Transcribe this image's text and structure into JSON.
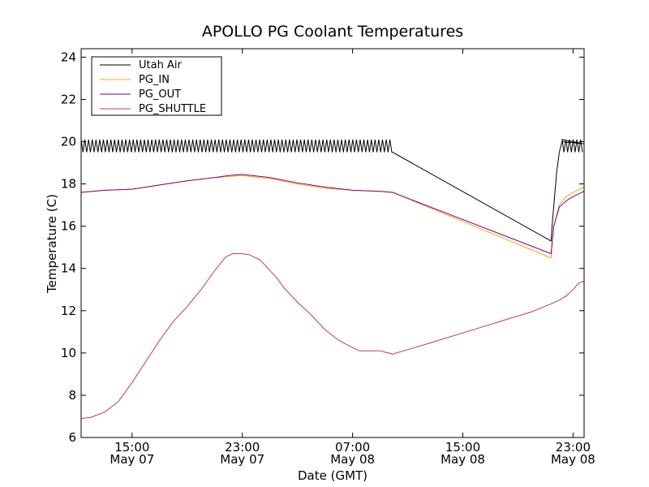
{
  "chart_data": {
    "type": "line",
    "title": "APOLLO PG Coolant Temperatures",
    "xlabel": "Date (GMT)",
    "ylabel": "Temperature (C)",
    "xlim": [
      11.3,
      47.8
    ],
    "ylim": [
      6,
      24.4
    ],
    "y_ticks": [
      {
        "value": 6,
        "label": "6"
      },
      {
        "value": 8,
        "label": "8"
      },
      {
        "value": 10,
        "label": "10"
      },
      {
        "value": 12,
        "label": "12"
      },
      {
        "value": 14,
        "label": "14"
      },
      {
        "value": 16,
        "label": "16"
      },
      {
        "value": 18,
        "label": "18"
      },
      {
        "value": 20,
        "label": "20"
      },
      {
        "value": 22,
        "label": "22"
      },
      {
        "value": 24,
        "label": "24"
      }
    ],
    "x_ticks": [
      {
        "value": 15,
        "time": "15:00",
        "date": "May 07"
      },
      {
        "value": 23,
        "time": "23:00",
        "date": "May 07"
      },
      {
        "value": 31,
        "time": "07:00",
        "date": "May 08"
      },
      {
        "value": 39,
        "time": "15:00",
        "date": "May 08"
      },
      {
        "value": 47,
        "time": "23:00",
        "date": "May 08"
      }
    ],
    "legend": {
      "position": "top-left"
    },
    "series": [
      {
        "name": "Utah Air",
        "color": "#000000",
        "oscillation": {
          "x_start": 11.3,
          "x_end": 33.9,
          "period": 0.27,
          "low": 19.5,
          "high": 20.1
        },
        "points": [
          [
            33.9,
            19.5
          ],
          [
            45.4,
            15.3
          ],
          [
            45.5,
            16.2
          ],
          [
            45.8,
            18.5
          ],
          [
            46.0,
            19.5
          ],
          [
            46.2,
            20.0
          ],
          [
            47.8,
            19.9
          ]
        ],
        "oscillation2": {
          "x_start": 46.2,
          "x_end": 47.8,
          "period": 0.27,
          "low": 19.5,
          "high": 20.1
        }
      },
      {
        "name": "PG_IN",
        "color": "#ffa500",
        "points": [
          [
            11.3,
            17.6
          ],
          [
            13.0,
            17.7
          ],
          [
            15.0,
            17.75
          ],
          [
            17.0,
            17.95
          ],
          [
            19.0,
            18.15
          ],
          [
            21.0,
            18.3
          ],
          [
            22.0,
            18.35
          ],
          [
            23.0,
            18.4
          ],
          [
            25.0,
            18.25
          ],
          [
            27.0,
            18.0
          ],
          [
            29.0,
            17.8
          ],
          [
            31.0,
            17.7
          ],
          [
            33.0,
            17.65
          ],
          [
            33.9,
            17.6
          ],
          [
            45.4,
            14.5
          ],
          [
            45.6,
            16.0
          ],
          [
            46.0,
            17.0
          ],
          [
            46.5,
            17.4
          ],
          [
            47.0,
            17.6
          ],
          [
            47.8,
            17.85
          ]
        ]
      },
      {
        "name": "PG_OUT",
        "color": "#800080",
        "points": [
          [
            11.3,
            17.6
          ],
          [
            13.0,
            17.7
          ],
          [
            15.0,
            17.75
          ],
          [
            17.0,
            17.95
          ],
          [
            19.0,
            18.15
          ],
          [
            21.0,
            18.3
          ],
          [
            22.0,
            18.4
          ],
          [
            23.0,
            18.45
          ],
          [
            25.0,
            18.3
          ],
          [
            27.0,
            18.05
          ],
          [
            29.0,
            17.85
          ],
          [
            31.0,
            17.7
          ],
          [
            33.0,
            17.65
          ],
          [
            33.9,
            17.6
          ],
          [
            45.4,
            14.7
          ],
          [
            45.6,
            16.0
          ],
          [
            46.0,
            16.9
          ],
          [
            46.5,
            17.2
          ],
          [
            47.0,
            17.4
          ],
          [
            47.8,
            17.65
          ]
        ]
      },
      {
        "name": "PG_SHUTTLE",
        "color": "#c04040",
        "points": [
          [
            11.3,
            6.9
          ],
          [
            12.0,
            6.95
          ],
          [
            13.0,
            7.2
          ],
          [
            14.0,
            7.7
          ],
          [
            15.0,
            8.6
          ],
          [
            16.0,
            9.6
          ],
          [
            17.0,
            10.6
          ],
          [
            18.0,
            11.5
          ],
          [
            19.0,
            12.2
          ],
          [
            20.0,
            13.0
          ],
          [
            21.0,
            13.9
          ],
          [
            21.8,
            14.55
          ],
          [
            22.3,
            14.7
          ],
          [
            23.0,
            14.7
          ],
          [
            23.5,
            14.65
          ],
          [
            24.3,
            14.4
          ],
          [
            25.0,
            13.9
          ],
          [
            25.5,
            13.55
          ],
          [
            26.0,
            13.1
          ],
          [
            27.0,
            12.4
          ],
          [
            28.0,
            11.8
          ],
          [
            29.0,
            11.1
          ],
          [
            30.0,
            10.6
          ],
          [
            31.0,
            10.25
          ],
          [
            31.5,
            10.1
          ],
          [
            32.5,
            10.1
          ],
          [
            33.0,
            10.1
          ],
          [
            33.9,
            9.95
          ],
          [
            36.0,
            10.35
          ],
          [
            38.0,
            10.75
          ],
          [
            40.0,
            11.15
          ],
          [
            42.0,
            11.55
          ],
          [
            44.0,
            11.95
          ],
          [
            45.5,
            12.35
          ],
          [
            46.0,
            12.5
          ],
          [
            46.5,
            12.7
          ],
          [
            47.0,
            13.0
          ],
          [
            47.4,
            13.3
          ],
          [
            47.8,
            13.4
          ]
        ]
      }
    ]
  }
}
